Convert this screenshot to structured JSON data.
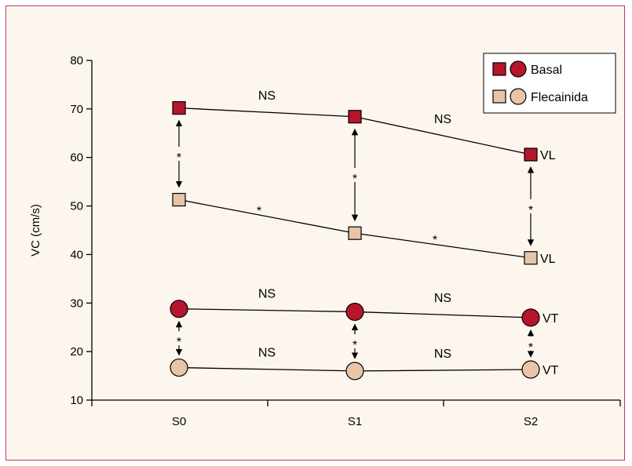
{
  "chart_data": {
    "type": "line",
    "categories": [
      "S0",
      "S1",
      "S2"
    ],
    "ylabel": "VC (cm/s)",
    "xlabel": "",
    "ylim": [
      10,
      80
    ],
    "yticks": [
      10,
      20,
      30,
      40,
      50,
      60,
      70,
      80
    ],
    "legend": {
      "placement": "top-right",
      "entries": [
        {
          "label": "Basal",
          "color": "#b5162b",
          "markers": [
            "square",
            "circle"
          ]
        },
        {
          "label": "Flecainida",
          "color": "#e8c4a8",
          "markers": [
            "square",
            "circle"
          ]
        }
      ]
    },
    "series": [
      {
        "group": "Basal",
        "marker": "square",
        "end_label": "VL",
        "values": [
          70.2,
          68.4,
          60.6
        ]
      },
      {
        "group": "Flecainida",
        "marker": "square",
        "end_label": "VL",
        "values": [
          51.3,
          44.4,
          39.3
        ]
      },
      {
        "group": "Basal",
        "marker": "circle",
        "end_label": "VT",
        "values": [
          28.8,
          28.2,
          27.0
        ]
      },
      {
        "group": "Flecainida",
        "marker": "circle",
        "end_label": "VT",
        "values": [
          16.7,
          16.0,
          16.3
        ]
      }
    ],
    "segment_annotations": [
      {
        "series": 0,
        "segment": 0,
        "text": "NS"
      },
      {
        "series": 0,
        "segment": 1,
        "text": "NS"
      },
      {
        "series": 1,
        "segment": 0,
        "text": "*"
      },
      {
        "series": 1,
        "segment": 1,
        "text": "*"
      },
      {
        "series": 2,
        "segment": 0,
        "text": "NS"
      },
      {
        "series": 2,
        "segment": 1,
        "text": "NS"
      },
      {
        "series": 3,
        "segment": 0,
        "text": "NS"
      },
      {
        "series": 3,
        "segment": 1,
        "text": "NS"
      }
    ],
    "comparisons": [
      {
        "from_series": 0,
        "to_series": 1,
        "category": 0,
        "text": "*"
      },
      {
        "from_series": 0,
        "to_series": 1,
        "category": 1,
        "text": "*"
      },
      {
        "from_series": 0,
        "to_series": 1,
        "category": 2,
        "text": "*"
      },
      {
        "from_series": 2,
        "to_series": 3,
        "category": 0,
        "text": "*"
      },
      {
        "from_series": 2,
        "to_series": 3,
        "category": 1,
        "text": "*"
      },
      {
        "from_series": 2,
        "to_series": 3,
        "category": 2,
        "text": "*"
      }
    ],
    "colors": {
      "basal": "#b5162b",
      "flecainida": "#e8c4a8",
      "frame": "#c0385a",
      "background": "#fdf6ee"
    }
  }
}
